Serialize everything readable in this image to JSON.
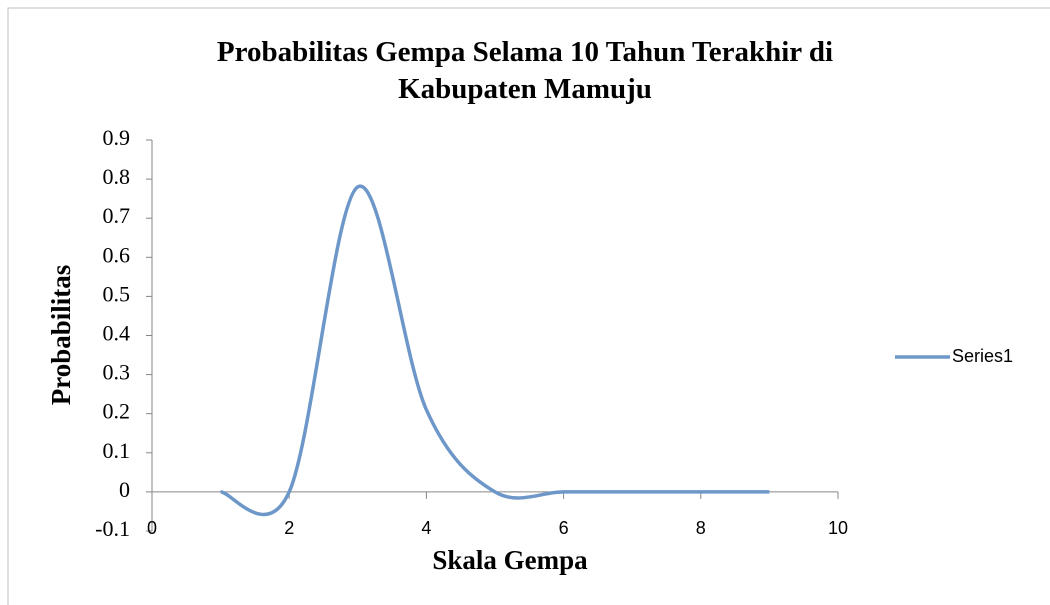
{
  "chart_data": {
    "type": "line",
    "title": "Probabilitas Gempa Selama 10 Tahun Terakhir di Kabupaten Mamuju",
    "x_label": "Skala Gempa",
    "y_label": "Probabilitas",
    "x": [
      1,
      2,
      3,
      4,
      5,
      6,
      7,
      8,
      9
    ],
    "series": [
      {
        "name": "Series1",
        "color": "#6d97c8",
        "values": [
          0,
          0,
          0.78,
          0.21,
          0,
          0,
          0,
          0,
          0
        ]
      }
    ],
    "xlim": [
      0,
      10
    ],
    "xticks": [
      0,
      2,
      4,
      6,
      8,
      10
    ],
    "ylim": [
      -0.1,
      0.9
    ],
    "yticks": [
      -0.1,
      0,
      0.1,
      0.2,
      0.3,
      0.4,
      0.5,
      0.6,
      0.7,
      0.8,
      0.9
    ],
    "smooth": true,
    "legend": "right"
  }
}
